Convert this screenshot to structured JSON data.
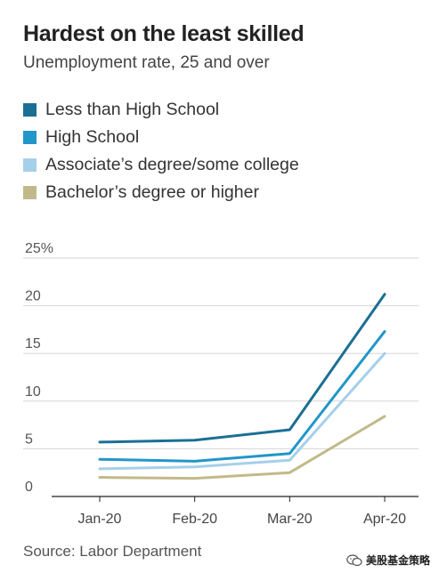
{
  "header": {
    "title": "Hardest on the least skilled",
    "subtitle": "Unemployment rate, 25 and over"
  },
  "legend": [
    {
      "label": "Less than High School",
      "color": "#1b6f94"
    },
    {
      "label": "High School",
      "color": "#2196c9"
    },
    {
      "label": "Associate’s degree/some college",
      "color": "#a6cfea"
    },
    {
      "label": "Bachelor’s degree or higher",
      "color": "#c2b98a"
    }
  ],
  "footer": {
    "source": "Source: Labor Department",
    "watermark": "美股基金策略",
    "watermark_icon": "wechat-icon"
  },
  "chart_data": {
    "type": "line",
    "categories": [
      "Jan-20",
      "Feb-20",
      "Mar-20",
      "Apr-20"
    ],
    "y_tick_labels": [
      "0",
      "5",
      "10",
      "15",
      "20",
      "25%"
    ],
    "ylim": [
      0,
      25
    ],
    "y_ticks": [
      0,
      5,
      10,
      15,
      20,
      25
    ],
    "grid": true,
    "legend_position": "top",
    "series": [
      {
        "name": "Less than High School",
        "color": "#1b6f94",
        "values": [
          5.7,
          5.9,
          7.0,
          21.2
        ]
      },
      {
        "name": "High School",
        "color": "#2196c9",
        "values": [
          3.9,
          3.7,
          4.5,
          17.3
        ]
      },
      {
        "name": "Associate’s degree/some college",
        "color": "#a6cfea",
        "values": [
          2.9,
          3.1,
          3.8,
          15.0
        ]
      },
      {
        "name": "Bachelor’s degree or higher",
        "color": "#c2b98a",
        "values": [
          2.0,
          1.9,
          2.5,
          8.4
        ]
      }
    ]
  }
}
